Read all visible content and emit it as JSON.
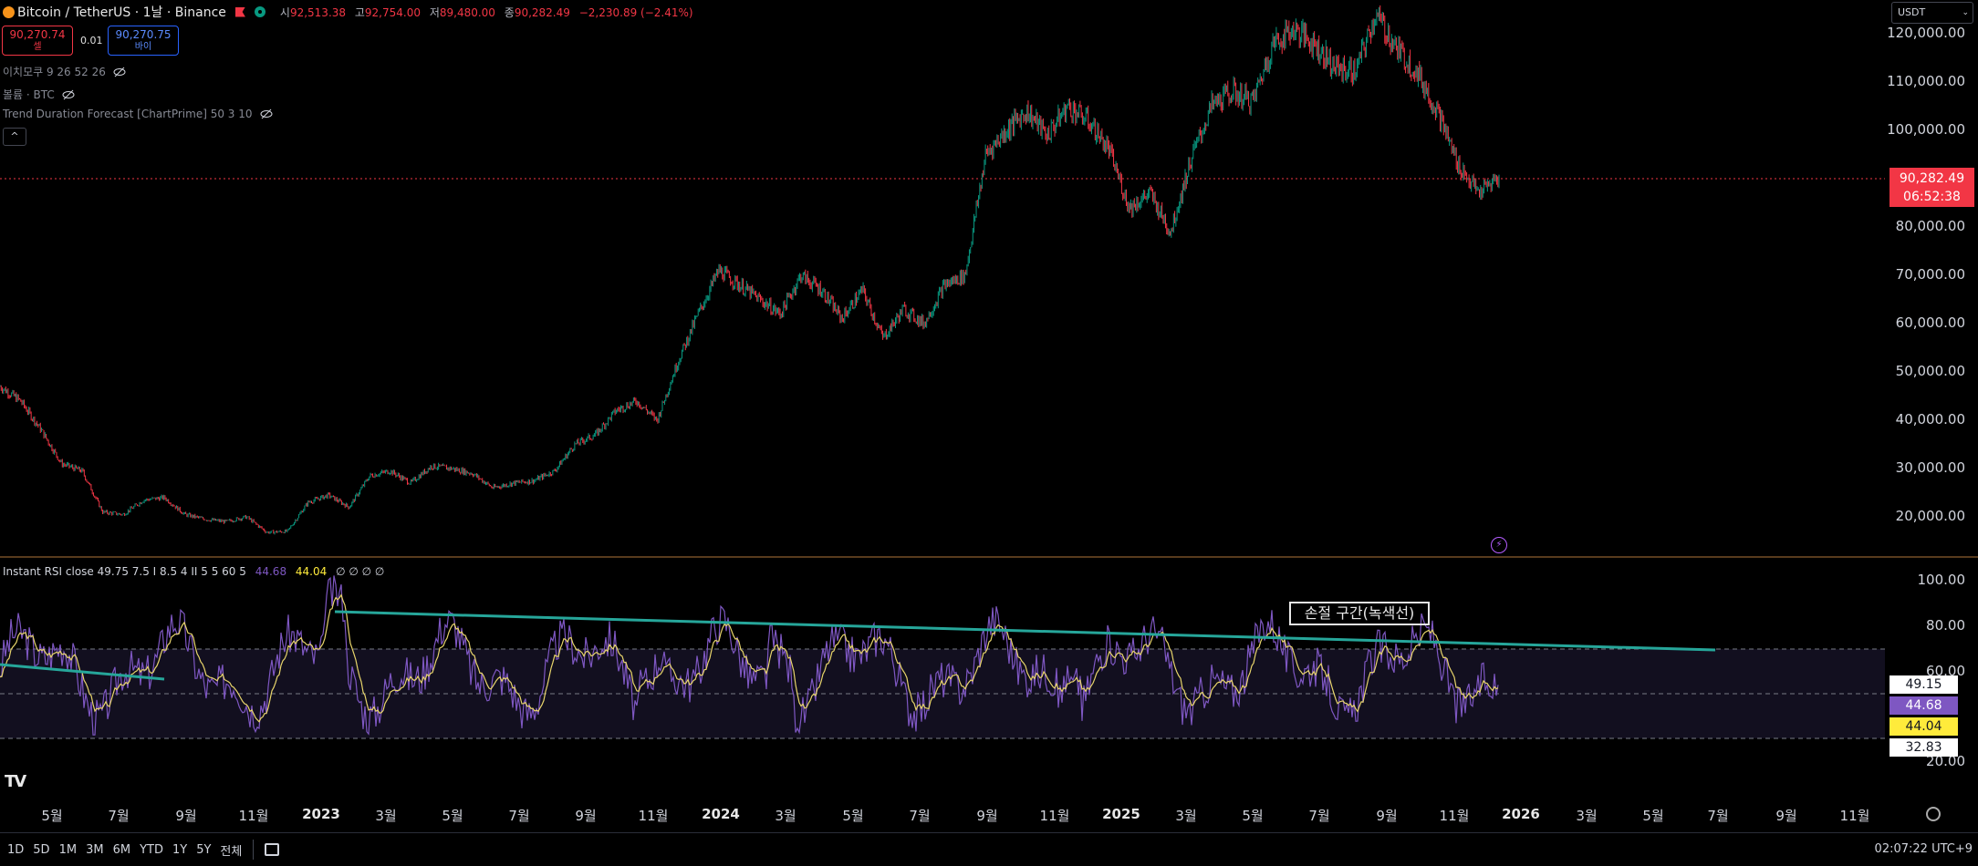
{
  "header": {
    "symbol": "Bitcoin / TetherUS · 1날 · Binance",
    "ohlc": [
      {
        "k": "시",
        "v": "92,513.38"
      },
      {
        "k": "고",
        "v": "92,754.00"
      },
      {
        "k": "저",
        "v": "89,480.00"
      },
      {
        "k": "종",
        "v": "90,282.49"
      },
      {
        "k": "",
        "v": "−2,230.89 (−2.41%)"
      }
    ]
  },
  "trade": {
    "sell_price": "90,270.74",
    "sell_label": "셀",
    "spread": "0.01",
    "buy_price": "90,270.75",
    "buy_label": "바이"
  },
  "indicators": [
    "이치모쿠 9 26 52 26",
    "볼륨 · BTC",
    "Trend Duration Forecast [ChartPrime] 50 3 10"
  ],
  "currency_select": "USDT",
  "price_axis": [
    "120,000.00",
    "110,000.00",
    "100,000.00",
    "90,000.00",
    "80,000.00",
    "70,000.00",
    "60,000.00",
    "50,000.00",
    "40,000.00",
    "30,000.00",
    "20,000.00"
  ],
  "current_price": {
    "price": "90,282.49",
    "countdown": "06:52:38"
  },
  "rsi": {
    "title_params": "Instant RSI close 49.75 7.5 I 8.5 4 II 5 5 60 5",
    "v1": "44.68",
    "v2": "44.04",
    "zeros": "∅ ∅ ∅ ∅",
    "axis": [
      "100.00",
      "80.00",
      "60.00",
      "20.00"
    ],
    "tags": [
      {
        "value": "49.15",
        "bg": "#ffffff",
        "fg": "#131722"
      },
      {
        "value": "44.68",
        "bg": "#7e57c2",
        "fg": "#ffffff"
      },
      {
        "value": "44.04",
        "bg": "#ffeb3b",
        "fg": "#131722"
      },
      {
        "value": "32.83",
        "bg": "#ffffff",
        "fg": "#131722"
      }
    ],
    "annotation": "손절 구간(녹색선)"
  },
  "time_axis": [
    {
      "label": "5월",
      "year": false
    },
    {
      "label": "7월",
      "year": false
    },
    {
      "label": "9월",
      "year": false
    },
    {
      "label": "11월",
      "year": false
    },
    {
      "label": "2023",
      "year": true
    },
    {
      "label": "3월",
      "year": false
    },
    {
      "label": "5월",
      "year": false
    },
    {
      "label": "7월",
      "year": false
    },
    {
      "label": "9월",
      "year": false
    },
    {
      "label": "11월",
      "year": false
    },
    {
      "label": "2024",
      "year": true
    },
    {
      "label": "3월",
      "year": false
    },
    {
      "label": "5월",
      "year": false
    },
    {
      "label": "7월",
      "year": false
    },
    {
      "label": "9월",
      "year": false
    },
    {
      "label": "11월",
      "year": false
    },
    {
      "label": "2025",
      "year": true
    },
    {
      "label": "3월",
      "year": false
    },
    {
      "label": "5월",
      "year": false
    },
    {
      "label": "7월",
      "year": false
    },
    {
      "label": "9월",
      "year": false
    },
    {
      "label": "11월",
      "year": false
    },
    {
      "label": "2026",
      "year": true
    },
    {
      "label": "3월",
      "year": false
    },
    {
      "label": "5월",
      "year": false
    },
    {
      "label": "7월",
      "year": false
    },
    {
      "label": "9월",
      "year": false
    },
    {
      "label": "11월",
      "year": false
    }
  ],
  "ranges": [
    "1D",
    "5D",
    "1M",
    "3M",
    "6M",
    "YTD",
    "1Y",
    "5Y",
    "전체"
  ],
  "clock": "02:07:22 UTC+9",
  "colors": {
    "up": "#089981",
    "down": "#f23645",
    "rsi": "#7e57c2",
    "signal": "#ffeb3b",
    "trend": "#26a69a"
  },
  "price_series": [
    47000,
    44000,
    38000,
    31000,
    29500,
    21000,
    20500,
    23500,
    24000,
    20500,
    19500,
    19000,
    20000,
    16800,
    17000,
    23000,
    24500,
    22000,
    28500,
    29500,
    27000,
    30500,
    30000,
    29000,
    26000,
    27000,
    27500,
    29500,
    35000,
    37000,
    42000,
    44000,
    40000,
    52000,
    62000,
    71000,
    68000,
    65000,
    62000,
    70000,
    67000,
    61000,
    67000,
    57000,
    63000,
    60000,
    68000,
    70000,
    95000,
    100000,
    104000,
    99000,
    105000,
    102000,
    96000,
    84000,
    87000,
    79000,
    94000,
    105000,
    108000,
    106000,
    118000,
    121000,
    118000,
    113000,
    112000,
    124000,
    117000,
    112000,
    104000,
    93000,
    87000,
    90282
  ]
}
